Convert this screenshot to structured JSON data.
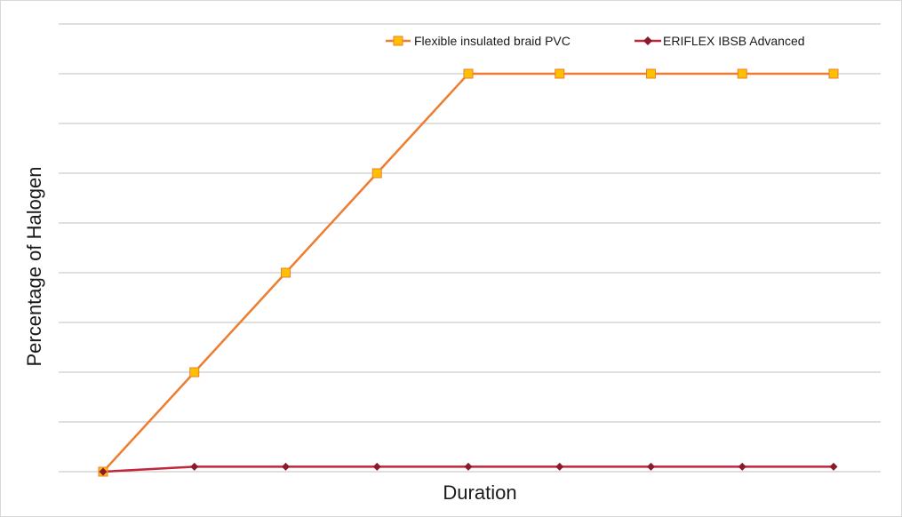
{
  "chart_data": {
    "type": "line",
    "title": "",
    "xlabel": "Duration",
    "ylabel": "Percentage of Halogen",
    "x": [
      0,
      1,
      2,
      3,
      4,
      5,
      6,
      7,
      8
    ],
    "ylim": [
      0,
      9
    ],
    "grid": true,
    "legend_position": "top-right",
    "series": [
      {
        "name": "Flexible insulated braid PVC",
        "values": [
          0,
          2,
          4,
          6,
          8,
          8,
          8,
          8,
          8
        ],
        "line_color": "#ED7D31",
        "marker_fill": "#FFC000",
        "marker": "square"
      },
      {
        "name": "ERIFLEX IBSB Advanced",
        "values": [
          0,
          0.1,
          0.1,
          0.1,
          0.1,
          0.1,
          0.1,
          0.1,
          0.1
        ],
        "line_color": "#C0263C",
        "marker_fill": "#8B1A2B",
        "marker": "diamond"
      }
    ]
  }
}
